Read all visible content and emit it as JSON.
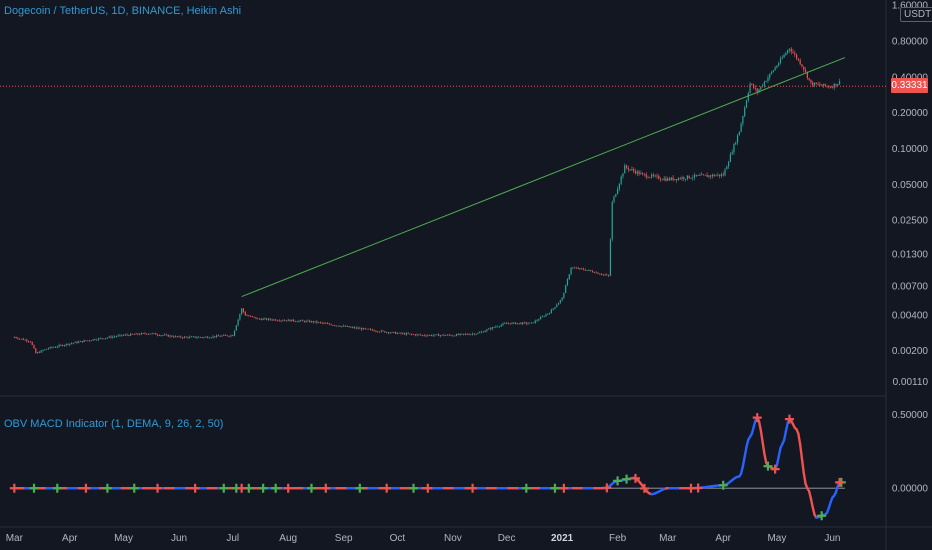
{
  "header": {
    "symbol_title": "Dogecoin / TetherUS, 1D, BINANCE, Heikin Ashi",
    "currency_button": "USDT",
    "last_price": "0.33331"
  },
  "indicator": {
    "title": "OBV MACD Indicator (1, DEMA, 9, 26, 2, 50)"
  },
  "colors": {
    "up": "#26a69a",
    "down": "#ef5350",
    "trendline": "#4caf50",
    "obv_positive": "#2962ff",
    "obv_negative": "#ef5350",
    "buy_marker": "#4caf50",
    "sell_marker": "#ef5350",
    "background": "#131722"
  },
  "chart_data": [
    {
      "type": "candlestick",
      "title": "Dogecoin / TetherUS, 1D, BINANCE, Heikin Ashi",
      "scale": "log",
      "y_ticks": [
        "1.60000",
        "0.80000",
        "0.40000",
        "0.20000",
        "0.10000",
        "0.05000",
        "0.02500",
        "0.01300",
        "0.00700",
        "0.00400",
        "0.00200",
        "0.00110"
      ],
      "x_ticks": [
        "Mar",
        "Apr",
        "May",
        "Jun",
        "Jul",
        "Aug",
        "Sep",
        "Oct",
        "Nov",
        "Dec",
        "2021",
        "Feb",
        "Mar",
        "Apr",
        "May",
        "Jun"
      ],
      "ylim": [
        0.0009,
        1.7
      ],
      "last_price": 0.33331,
      "price_series": {
        "dates": [
          "2020-03-01",
          "2020-03-10",
          "2020-03-13",
          "2020-03-20",
          "2020-04-01",
          "2020-04-15",
          "2020-05-01",
          "2020-05-15",
          "2020-06-01",
          "2020-06-15",
          "2020-07-01",
          "2020-07-06",
          "2020-07-08",
          "2020-07-15",
          "2020-08-01",
          "2020-08-15",
          "2020-09-01",
          "2020-09-15",
          "2020-10-01",
          "2020-10-15",
          "2020-11-01",
          "2020-11-15",
          "2020-11-25",
          "2020-12-01",
          "2020-12-15",
          "2020-12-25",
          "2021-01-01",
          "2021-01-06",
          "2021-01-15",
          "2021-01-27",
          "2021-01-29",
          "2021-02-05",
          "2021-02-15",
          "2021-03-01",
          "2021-03-15",
          "2021-04-01",
          "2021-04-10",
          "2021-04-16",
          "2021-04-20",
          "2021-05-01",
          "2021-05-08",
          "2021-05-15",
          "2021-05-20",
          "2021-05-31",
          "2021-06-05"
        ],
        "close": [
          0.0026,
          0.0024,
          0.0019,
          0.0021,
          0.0023,
          0.0025,
          0.0027,
          0.0028,
          0.0026,
          0.0026,
          0.0027,
          0.0045,
          0.004,
          0.0037,
          0.0036,
          0.0035,
          0.0032,
          0.003,
          0.0028,
          0.0027,
          0.0027,
          0.0028,
          0.0032,
          0.0034,
          0.0034,
          0.0042,
          0.0055,
          0.01,
          0.0095,
          0.0085,
          0.035,
          0.07,
          0.06,
          0.055,
          0.058,
          0.06,
          0.14,
          0.35,
          0.3,
          0.5,
          0.7,
          0.5,
          0.35,
          0.33,
          0.36
        ]
      },
      "trendline": {
        "start": {
          "date": "2020-07-06",
          "value": 0.0057
        },
        "end": {
          "date": "2021-06-08",
          "value": 0.58
        }
      }
    },
    {
      "type": "line",
      "title": "OBV MACD Indicator (1, DEMA, 9, 26, 2, 50)",
      "y_ticks": [
        "0.50000",
        "0.00000"
      ],
      "ylim": [
        -0.25,
        0.6
      ],
      "series": [
        {
          "dates": [
            "2020-03-01",
            "2020-06-01",
            "2020-12-01",
            "2021-01-01",
            "2021-01-25",
            "2021-02-01",
            "2021-02-10",
            "2021-02-20",
            "2021-03-01",
            "2021-03-15",
            "2021-04-01",
            "2021-04-10",
            "2021-04-16",
            "2021-04-20",
            "2021-04-26",
            "2021-04-30",
            "2021-05-04",
            "2021-05-08",
            "2021-05-12",
            "2021-05-18",
            "2021-05-23",
            "2021-05-28",
            "2021-06-02",
            "2021-06-05"
          ],
          "values": [
            0.0,
            0.0,
            0.0,
            0.0,
            0.0,
            0.05,
            0.07,
            -0.04,
            0.0,
            0.0,
            0.02,
            0.08,
            0.35,
            0.48,
            0.15,
            0.13,
            0.3,
            0.47,
            0.4,
            0.0,
            -0.2,
            -0.18,
            -0.05,
            0.04
          ]
        }
      ],
      "signals": {
        "buy_dates": [
          "2020-03-12",
          "2020-03-25",
          "2020-04-22",
          "2020-05-07",
          "2020-06-26",
          "2020-07-03",
          "2020-07-10",
          "2020-07-18",
          "2020-07-25",
          "2020-08-14",
          "2020-09-10",
          "2020-10-10",
          "2020-12-12",
          "2020-12-28",
          "2021-02-01",
          "2021-02-06",
          "2021-04-01",
          "2021-04-26",
          "2021-05-26",
          "2021-06-06"
        ],
        "sell_dates": [
          "2020-03-01",
          "2020-04-10",
          "2020-05-20",
          "2020-06-10",
          "2020-07-06",
          "2020-08-01",
          "2020-08-22",
          "2020-09-25",
          "2020-10-18",
          "2020-11-12",
          "2021-01-02",
          "2021-01-26",
          "2021-02-11",
          "2021-02-16",
          "2021-03-14",
          "2021-03-18",
          "2021-04-20",
          "2021-04-30",
          "2021-05-08",
          "2021-06-05"
        ]
      }
    }
  ]
}
